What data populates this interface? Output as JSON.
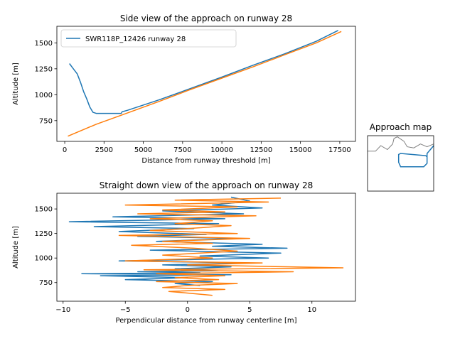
{
  "chart_data": [
    {
      "type": "line",
      "title": "Side view of the approach on runway 28",
      "xlabel": "Distance from runway threshold [m]",
      "ylabel": "Altitude [m]",
      "xlim": [
        -500,
        18500
      ],
      "ylim": [
        550,
        1660
      ],
      "xticks": [
        0,
        2500,
        5000,
        7500,
        10000,
        12500,
        15000,
        17500
      ],
      "yticks": [
        750,
        1000,
        1250,
        1500
      ],
      "legend": {
        "position": "top-left",
        "entries": [
          "SWR118P_12426 runway 28"
        ]
      },
      "series": [
        {
          "name": "SWR118P_12426 runway 28",
          "color": "#1f77b4",
          "x": [
            300,
            500,
            800,
            1000,
            1200,
            1400,
            1600,
            1800,
            2000,
            3000,
            3600,
            3650,
            4000,
            6000,
            8000,
            10000,
            12000,
            14000,
            16000,
            17400
          ],
          "y": [
            1300,
            1260,
            1200,
            1120,
            1030,
            960,
            880,
            830,
            820,
            820,
            820,
            835,
            850,
            950,
            1060,
            1170,
            1285,
            1395,
            1515,
            1620
          ]
        },
        {
          "color": "#ff7f0e",
          "x": [
            200,
            2000,
            4000,
            6000,
            8000,
            10000,
            12000,
            14000,
            16000,
            17600
          ],
          "y": [
            600,
            715,
            825,
            935,
            1050,
            1160,
            1270,
            1385,
            1500,
            1610
          ]
        }
      ]
    },
    {
      "type": "line",
      "title": "Straight down view of the approach on runway 28",
      "xlabel": "Perpendicular distance from runway centerline [m]",
      "ylabel": "Altitude [m]",
      "xlim": [
        -10.5,
        13.5
      ],
      "ylim": [
        560,
        1660
      ],
      "xticks": [
        -10,
        -5,
        0,
        5,
        10
      ],
      "yticks": [
        750,
        1000,
        1250,
        1500
      ],
      "series": [
        {
          "color": "#1f77b4",
          "x": [
            3.5,
            5.0,
            2.0,
            6.0,
            -2.0,
            4.5,
            -6.0,
            3.0,
            -9.5,
            2.5,
            -7.5,
            0.5,
            -5.5,
            1.5,
            -4.0,
            4.0,
            -2.5,
            6.0,
            2.0,
            8.0,
            -3.0,
            7.5,
            1.0,
            6.5,
            -5.5,
            5.0,
            -2.0,
            3.5,
            -1.0,
            2.5,
            -4.0,
            1.0,
            -8.5,
            3.5,
            -7.0,
            0.0,
            -5.0,
            2.0,
            -1.0,
            1.0
          ],
          "y": [
            1620,
            1580,
            1540,
            1510,
            1480,
            1450,
            1420,
            1400,
            1370,
            1350,
            1320,
            1300,
            1270,
            1240,
            1220,
            1200,
            1170,
            1140,
            1120,
            1100,
            1080,
            1050,
            1020,
            1000,
            970,
            950,
            930,
            910,
            890,
            870,
            860,
            850,
            840,
            830,
            820,
            800,
            780,
            760,
            740,
            720
          ]
        },
        {
          "color": "#ff7f0e",
          "x": [
            7.5,
            -1.0,
            6.5,
            -5.0,
            4.0,
            -2.0,
            3.0,
            -4.0,
            5.5,
            -3.0,
            2.0,
            -1.0,
            3.5,
            0.0,
            -3.0,
            4.0,
            -5.5,
            5.0,
            -2.0,
            2.0,
            -4.5,
            0.5,
            4.0,
            1.0,
            -2.0,
            2.0,
            -5.0,
            6.0,
            0.0,
            12.5,
            -3.5,
            8.5,
            -2.5,
            3.0,
            -1.0,
            2.5,
            -2.5,
            4.0,
            0.0,
            -2.0,
            3.0,
            -1.5,
            2.0
          ],
          "y": [
            1610,
            1590,
            1570,
            1540,
            1520,
            1490,
            1470,
            1450,
            1430,
            1400,
            1380,
            1350,
            1330,
            1300,
            1280,
            1250,
            1230,
            1200,
            1170,
            1150,
            1130,
            1100,
            1070,
            1050,
            1030,
            1000,
            970,
            950,
            930,
            900,
            880,
            860,
            840,
            820,
            800,
            780,
            760,
            740,
            720,
            700,
            680,
            660,
            620
          ]
        }
      ]
    },
    {
      "type": "line",
      "title": "Approach map",
      "map_paths": [
        {
          "color": "#808080",
          "x": [
            0.0,
            0.12,
            0.2,
            0.3,
            0.38,
            0.4,
            0.45,
            0.55,
            0.6,
            0.7,
            0.8,
            0.9,
            1.0
          ],
          "y": [
            0.72,
            0.72,
            0.82,
            0.75,
            0.85,
            0.95,
            0.98,
            0.9,
            0.8,
            0.78,
            0.85,
            0.8,
            0.85
          ]
        },
        {
          "color": "#1f77b4",
          "x": [
            1.0,
            0.95,
            0.9,
            0.9,
            0.85,
            0.5,
            0.47,
            0.47,
            0.5,
            0.88,
            0.9
          ],
          "y": [
            0.82,
            0.75,
            0.68,
            0.5,
            0.44,
            0.44,
            0.52,
            0.66,
            0.68,
            0.64,
            0.62
          ]
        }
      ]
    }
  ]
}
